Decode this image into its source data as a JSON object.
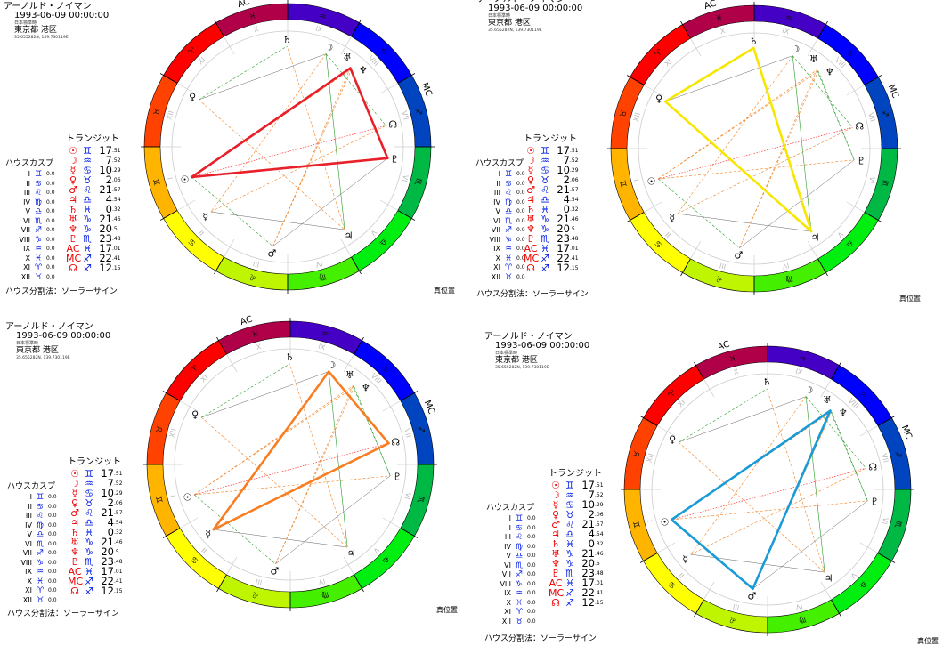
{
  "header": {
    "name": "アーノルド・ノイマン",
    "datetime": "1993-06-09 00:00:00",
    "timezone": "日本標準時",
    "place": "東京都 港区",
    "coords": "35.655282N, 139.730119E"
  },
  "transit_title": "トランジット",
  "transits": [
    {
      "planet": "☉",
      "sign": "♊",
      "deg": "17",
      "frac": ".51"
    },
    {
      "planet": "☽",
      "sign": "♒",
      "deg": "7",
      "frac": ".52"
    },
    {
      "planet": "☿",
      "sign": "♋",
      "deg": "10",
      "frac": ".29"
    },
    {
      "planet": "♀",
      "sign": "♉",
      "deg": "2",
      "frac": ".06"
    },
    {
      "planet": "♂",
      "sign": "♌",
      "deg": "21",
      "frac": ".57"
    },
    {
      "planet": "♃",
      "sign": "♎",
      "deg": "4",
      "frac": ".54"
    },
    {
      "planet": "♄",
      "sign": "♓",
      "deg": "0",
      "frac": ".32"
    },
    {
      "planet": "♅",
      "sign": "♑",
      "deg": "21",
      "frac": ".46"
    },
    {
      "planet": "♆",
      "sign": "♑",
      "deg": "20",
      "frac": ".5"
    },
    {
      "planet": "♇",
      "sign": "♏",
      "deg": "23",
      "frac": ".48"
    },
    {
      "planet": "AC",
      "sign": "♓",
      "deg": "17",
      "frac": ".01"
    },
    {
      "planet": "MC",
      "sign": "♐",
      "deg": "22",
      "frac": ".41"
    },
    {
      "planet": "☊",
      "sign": "♐",
      "deg": "12",
      "frac": ".15"
    }
  ],
  "house_title": "ハウスカスプ",
  "houses": [
    {
      "num": "I",
      "sign": "♊",
      "value": "0.0"
    },
    {
      "num": "II",
      "sign": "♋",
      "value": "0.0"
    },
    {
      "num": "III",
      "sign": "♌",
      "value": "0.0"
    },
    {
      "num": "IV",
      "sign": "♍",
      "value": "0.0"
    },
    {
      "num": "V",
      "sign": "♎",
      "value": "0.0"
    },
    {
      "num": "VI",
      "sign": "♏",
      "value": "0.0"
    },
    {
      "num": "VII",
      "sign": "♐",
      "value": "0.0"
    },
    {
      "num": "VIII",
      "sign": "♑",
      "value": "0.0"
    },
    {
      "num": "IX",
      "sign": "♒",
      "value": "0.0"
    },
    {
      "num": "X",
      "sign": "♓",
      "value": "0.0"
    },
    {
      "num": "XI",
      "sign": "♈",
      "value": "0.0"
    },
    {
      "num": "XII",
      "sign": "♉",
      "value": "0.0"
    }
  ],
  "method_label": "ハウス分割法：ソーラーサイン",
  "true_position_label": "真位置",
  "wheel": {
    "signs": [
      "♈",
      "♉",
      "♊",
      "♋",
      "♌",
      "♍",
      "♎",
      "♏",
      "♐",
      "♑",
      "♒",
      "♓"
    ],
    "sign_colors": [
      "#ff0000",
      "#ff4200",
      "#ffb400",
      "#ffff00",
      "#bff500",
      "#44f000",
      "#00ee10",
      "#00b844",
      "#0044c0",
      "#0000ff",
      "#4400c4",
      "#b00048"
    ],
    "ac_label": "AC",
    "mc_label": "MC",
    "house_numerals": [
      "I",
      "II",
      "III",
      "IV",
      "V",
      "VI",
      "VII",
      "VIII",
      "IX",
      "X",
      "XI",
      "XII"
    ]
  },
  "charts": [
    {
      "highlight_color": "#e8202a",
      "highlight_planets": [
        0,
        7,
        9
      ]
    },
    {
      "highlight_color": "#f7e600",
      "highlight_planets": [
        3,
        6,
        5
      ]
    },
    {
      "highlight_color": "#f77e22",
      "highlight_planets": [
        1,
        12,
        2
      ]
    },
    {
      "highlight_color": "#1a9bd8",
      "highlight_planets": [
        0,
        7,
        4
      ]
    }
  ]
}
